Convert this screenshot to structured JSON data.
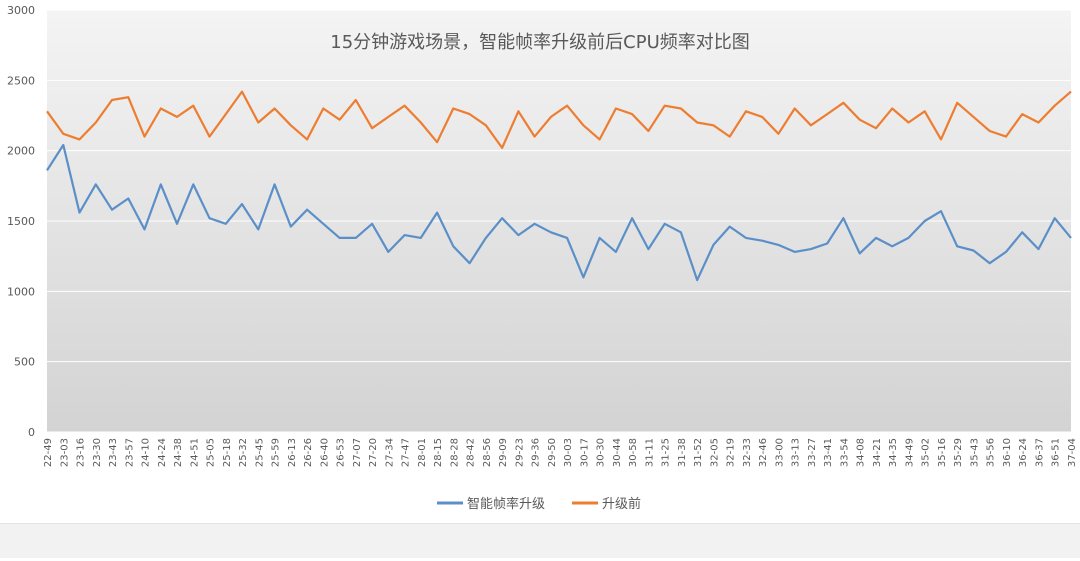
{
  "colors": {
    "after": "#5b8fc8",
    "before": "#ed7d31",
    "plot_top": "#f4f4f4",
    "plot_bottom": "#d3d3d3",
    "grid": "#ffffff",
    "text": "#595959"
  },
  "chart_data": {
    "type": "line",
    "title": "15分钟游戏场景，智能帧率升级前后CPU频率对比图",
    "xlabel": "",
    "ylabel": "",
    "ylim": [
      0,
      3000
    ],
    "yticks": [
      0,
      500,
      1000,
      1500,
      2000,
      2500,
      3000
    ],
    "grid": true,
    "legend_position": "bottom",
    "categories": [
      "22-49",
      "23-03",
      "23-16",
      "23-30",
      "23-43",
      "23-57",
      "24-10",
      "24-24",
      "24-38",
      "24-51",
      "25-05",
      "25-18",
      "25-32",
      "25-45",
      "25-59",
      "26-13",
      "26-26",
      "26-40",
      "26-53",
      "27-07",
      "27-20",
      "27-34",
      "27-47",
      "28-01",
      "28-15",
      "28-28",
      "28-42",
      "28-56",
      "29-09",
      "29-23",
      "29-36",
      "29-50",
      "30-03",
      "30-17",
      "30-30",
      "30-44",
      "30-58",
      "31-11",
      "31-25",
      "31-38",
      "31-52",
      "32-05",
      "32-19",
      "32-33",
      "32-46",
      "33-00",
      "33-13",
      "33-27",
      "33-41",
      "33-54",
      "34-08",
      "34-21",
      "34-35",
      "34-49",
      "35-02",
      "35-16",
      "35-29",
      "35-43",
      "35-56",
      "36-10",
      "36-24",
      "36-37",
      "36-51",
      "37-04"
    ],
    "series": [
      {
        "name": "智能帧率升级",
        "values": [
          1860,
          2040,
          1560,
          1760,
          1580,
          1660,
          1440,
          1760,
          1480,
          1760,
          1520,
          1480,
          1620,
          1440,
          1760,
          1460,
          1580,
          1480,
          1380,
          1380,
          1480,
          1280,
          1400,
          1380,
          1560,
          1320,
          1200,
          1380,
          1520,
          1400,
          1480,
          1420,
          1380,
          1100,
          1380,
          1280,
          1520,
          1300,
          1480,
          1420,
          1080,
          1330,
          1460,
          1380,
          1360,
          1330,
          1280,
          1300,
          1340,
          1520,
          1270,
          1380,
          1320,
          1380,
          1500,
          1570,
          1320,
          1290,
          1200,
          1280,
          1420,
          1300,
          1520,
          1380
        ]
      },
      {
        "name": "升级前",
        "values": [
          2280,
          2120,
          2080,
          2200,
          2360,
          2380,
          2100,
          2300,
          2240,
          2320,
          2100,
          2260,
          2420,
          2200,
          2300,
          2180,
          2080,
          2300,
          2220,
          2360,
          2160,
          2240,
          2320,
          2200,
          2060,
          2300,
          2260,
          2180,
          2020,
          2280,
          2100,
          2240,
          2320,
          2180,
          2080,
          2300,
          2260,
          2140,
          2320,
          2300,
          2200,
          2180,
          2100,
          2280,
          2240,
          2120,
          2300,
          2180,
          2260,
          2340,
          2220,
          2160,
          2300,
          2200,
          2280,
          2080,
          2340,
          2240,
          2140,
          2100,
          2260,
          2200,
          2320,
          2420
        ]
      }
    ]
  }
}
